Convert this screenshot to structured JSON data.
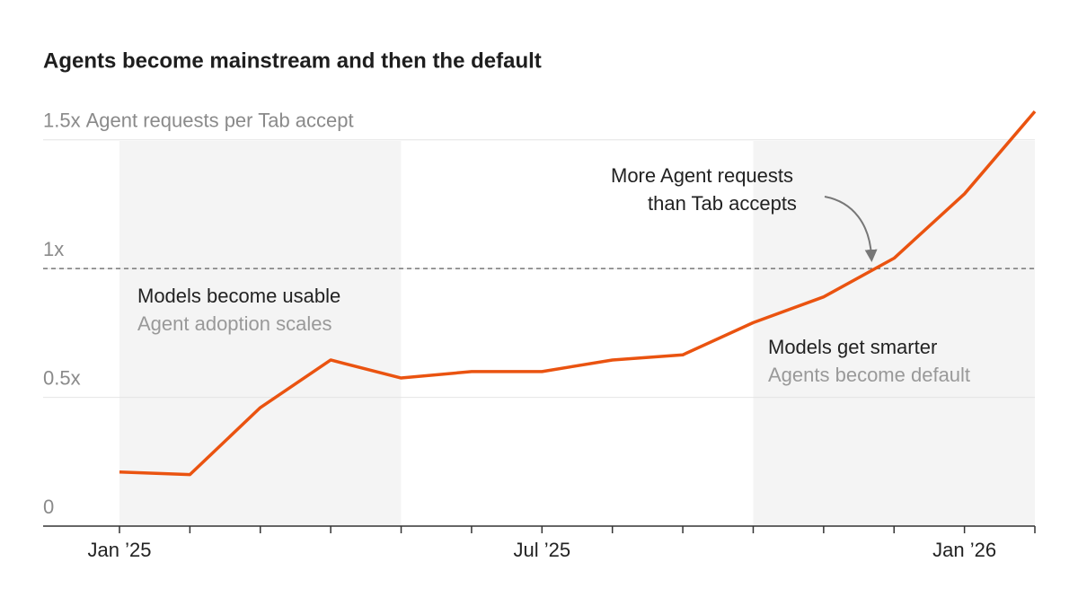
{
  "chart_data": {
    "type": "line",
    "title": "Agents become mainstream and then the default",
    "y_label": "Agent requests per Tab accept",
    "categories": [
      "Jan ’25",
      null,
      null,
      null,
      null,
      null,
      "Jul ’25",
      null,
      null,
      null,
      null,
      null,
      "Jan ’26",
      null
    ],
    "series": [
      {
        "name": "Agent requests per Tab accept",
        "color": "#ea5310",
        "values": [
          0.21,
          0.2,
          0.46,
          0.645,
          0.575,
          0.6,
          0.6,
          0.645,
          0.665,
          0.79,
          0.89,
          1.04,
          1.29,
          1.61
        ]
      }
    ],
    "ylim": [
      0,
      1.6
    ],
    "yticks": [
      0,
      {
        "value": 0.5,
        "label": "0.5x"
      },
      {
        "value": 1,
        "label": "1x"
      },
      {
        "value": 1.5,
        "label": "1.5x"
      }
    ],
    "reference_line": 1,
    "grid": true,
    "phases": [
      {
        "title": "Models become usable",
        "subtitle": "Agent adoption scales"
      },
      {
        "title": "Models get smarter",
        "subtitle": "Agents become default"
      }
    ],
    "annotation": [
      "More Agent requests",
      "than Tab accepts"
    ]
  }
}
